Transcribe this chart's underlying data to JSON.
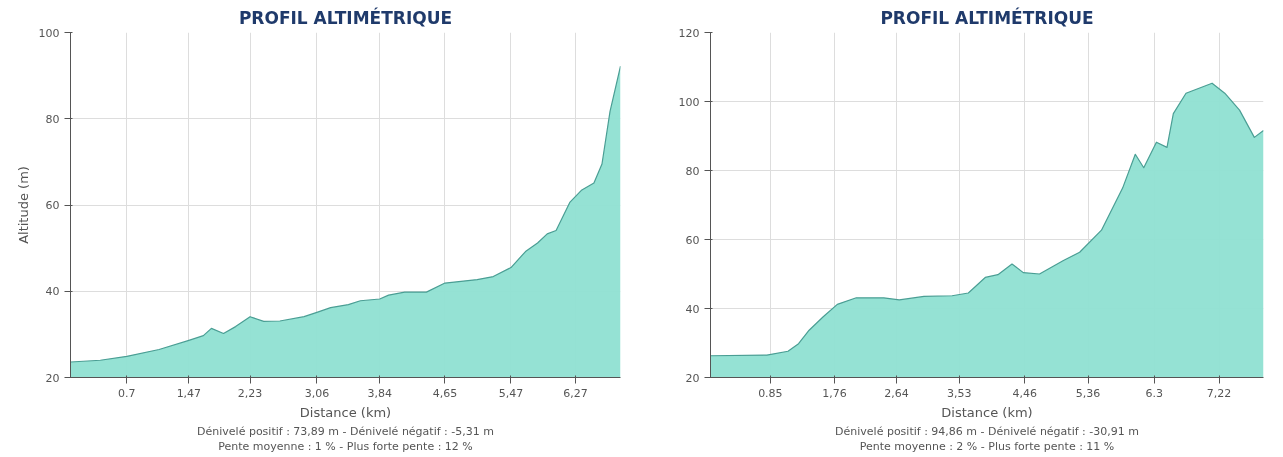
{
  "chart_data": [
    {
      "type": "area",
      "title": "PROFIL ALTIMÉTRIQUE",
      "xlabel": "Distance (km)",
      "ylabel": "Altitude (m)",
      "x": [
        0,
        0.37,
        0.7,
        1.1,
        1.47,
        1.65,
        1.75,
        1.9,
        2.05,
        2.23,
        2.4,
        2.6,
        2.9,
        3.06,
        3.23,
        3.45,
        3.6,
        3.84,
        3.95,
        4.15,
        4.42,
        4.65,
        5.05,
        5.25,
        5.47,
        5.65,
        5.8,
        5.92,
        6.03,
        6.2,
        6.35,
        6.5,
        6.6,
        6.7,
        6.83
      ],
      "series": [
        {
          "color": "#8fe0d2",
          "values": [
            23.6,
            24,
            24.9,
            26.5,
            28.6,
            29.7,
            31.4,
            30.2,
            31.8,
            34.1,
            33,
            33.1,
            34.1,
            35.1,
            36.2,
            36.9,
            37.8,
            38.2,
            39.1,
            39.8,
            39.8,
            41.9,
            42.7,
            43.4,
            45.5,
            49.2,
            51.2,
            53.3,
            54.1,
            60.6,
            63.5,
            65.1,
            69.5,
            81.7,
            92.2
          ]
        }
      ],
      "xlim": [
        0,
        6.83
      ],
      "ylim": [
        20,
        100
      ],
      "yticks": [
        20,
        40,
        60,
        80,
        100
      ],
      "xticks": [
        {
          "value": 0.7,
          "label": "0.7"
        },
        {
          "value": 1.47,
          "label": "1,47"
        },
        {
          "value": 2.23,
          "label": "2,23"
        },
        {
          "value": 3.06,
          "label": "3,06"
        },
        {
          "value": 3.84,
          "label": "3,84"
        },
        {
          "value": 4.65,
          "label": "4,65"
        },
        {
          "value": 5.47,
          "label": "5,47"
        },
        {
          "value": 6.27,
          "label": "6,27"
        }
      ],
      "grid": true,
      "annotations": [
        "Dénivelé positif : 73,89 m - Dénivelé négatif : -5,31 m",
        "Pente moyenne : 1 % - Plus forte pente : 12 %"
      ]
    },
    {
      "type": "area",
      "title": "PROFIL ALTIMÉTRIQUE",
      "xlabel": "Distance (km)",
      "x": [
        0,
        0.8,
        1.1,
        1.25,
        1.4,
        1.6,
        1.8,
        2.07,
        2.46,
        2.68,
        3.03,
        3.43,
        3.66,
        3.9,
        4.08,
        4.28,
        4.44,
        4.67,
        5.01,
        5.24,
        5.55,
        5.85,
        6.03,
        6.15,
        6.33,
        6.48,
        6.57,
        6.75,
        7.12,
        7.3,
        7.51,
        7.72,
        7.85
      ],
      "series": [
        {
          "color": "#8fe0d2",
          "values": [
            26.3,
            26.5,
            27.6,
            29.8,
            33.7,
            37.6,
            41.2,
            43.1,
            43.1,
            42.5,
            43.5,
            43.7,
            44.5,
            49,
            49.8,
            52.9,
            50.4,
            50,
            53.9,
            56.3,
            62.7,
            74.9,
            84.7,
            80.8,
            88.2,
            86.7,
            96.5,
            102.4,
            105.3,
            102.4,
            97.5,
            89.6,
            91.6
          ]
        }
      ],
      "xlim": [
        0,
        7.85
      ],
      "ylim": [
        20,
        120
      ],
      "yticks": [
        20,
        40,
        60,
        80,
        100,
        120
      ],
      "xticks": [
        {
          "value": 0.85,
          "label": "0.85"
        },
        {
          "value": 1.76,
          "label": "1,76"
        },
        {
          "value": 2.64,
          "label": "2,64"
        },
        {
          "value": 3.53,
          "label": "3,53"
        },
        {
          "value": 4.46,
          "label": "4,46"
        },
        {
          "value": 5.36,
          "label": "5,36"
        },
        {
          "value": 6.3,
          "label": "6.3"
        },
        {
          "value": 7.22,
          "label": "7,22"
        }
      ],
      "grid": true,
      "annotations": [
        "Dénivelé positif : 94,86 m - Dénivelé négatif : -30,91 m",
        "Pente moyenne : 2 % - Plus forte pente : 11 %"
      ]
    }
  ]
}
